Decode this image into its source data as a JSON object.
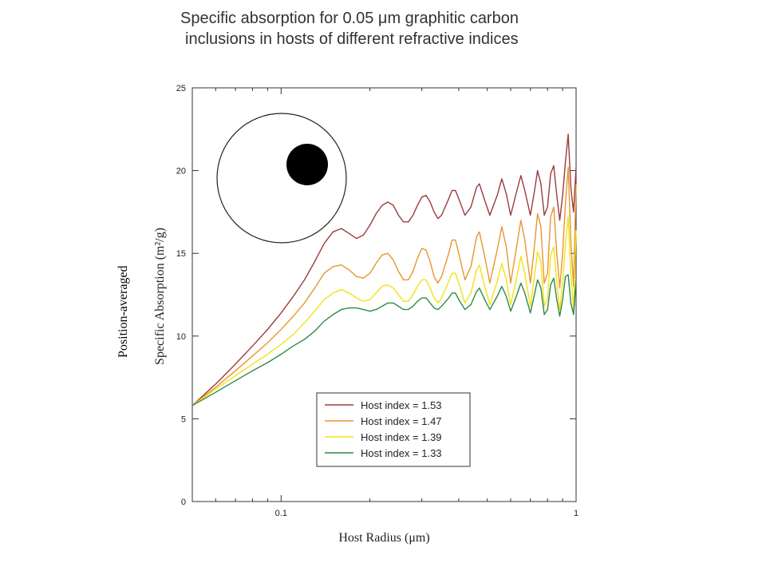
{
  "title_line1": "Specific absorption for 0.05 μm graphitic carbon",
  "title_line2": "inclusions in hosts of different refractive indices",
  "side_note": "Position-averaged",
  "chart_data": {
    "type": "line",
    "xlabel": "Host Radius (μm)",
    "ylabel": "Specific Absorption (m²/g)",
    "x_scale": "log",
    "xlim": [
      0.05,
      1
    ],
    "ylim": [
      0,
      25
    ],
    "x_ticks": [
      {
        "value": 0.1,
        "label": "0.1"
      },
      {
        "value": 1,
        "label": "1"
      }
    ],
    "y_ticks": [
      0,
      5,
      10,
      15,
      20,
      25
    ],
    "grid": false,
    "legend_position": "bottom-right",
    "inset_icon": "circle-with-off-center-black-dot",
    "series": [
      {
        "name": "Host index = 1.53",
        "color": "#9b3b3b",
        "points": [
          [
            0.05,
            5.8
          ],
          [
            0.06,
            7.1
          ],
          [
            0.07,
            8.3
          ],
          [
            0.08,
            9.4
          ],
          [
            0.09,
            10.4
          ],
          [
            0.1,
            11.4
          ],
          [
            0.11,
            12.4
          ],
          [
            0.12,
            13.4
          ],
          [
            0.13,
            14.5
          ],
          [
            0.14,
            15.6
          ],
          [
            0.15,
            16.3
          ],
          [
            0.16,
            16.5
          ],
          [
            0.17,
            16.2
          ],
          [
            0.18,
            15.9
          ],
          [
            0.19,
            16.1
          ],
          [
            0.2,
            16.7
          ],
          [
            0.21,
            17.4
          ],
          [
            0.22,
            17.9
          ],
          [
            0.23,
            18.1
          ],
          [
            0.24,
            17.9
          ],
          [
            0.25,
            17.3
          ],
          [
            0.26,
            16.9
          ],
          [
            0.27,
            16.9
          ],
          [
            0.28,
            17.3
          ],
          [
            0.29,
            17.9
          ],
          [
            0.3,
            18.4
          ],
          [
            0.31,
            18.5
          ],
          [
            0.32,
            18.1
          ],
          [
            0.33,
            17.5
          ],
          [
            0.34,
            17.1
          ],
          [
            0.35,
            17.3
          ],
          [
            0.37,
            18.3
          ],
          [
            0.38,
            18.8
          ],
          [
            0.39,
            18.8
          ],
          [
            0.4,
            18.3
          ],
          [
            0.42,
            17.3
          ],
          [
            0.44,
            17.8
          ],
          [
            0.46,
            19.0
          ],
          [
            0.47,
            19.2
          ],
          [
            0.49,
            18.2
          ],
          [
            0.51,
            17.3
          ],
          [
            0.54,
            18.5
          ],
          [
            0.56,
            19.5
          ],
          [
            0.58,
            18.6
          ],
          [
            0.6,
            17.3
          ],
          [
            0.63,
            18.8
          ],
          [
            0.65,
            19.7
          ],
          [
            0.67,
            18.8
          ],
          [
            0.7,
            17.3
          ],
          [
            0.72,
            18.6
          ],
          [
            0.74,
            20.0
          ],
          [
            0.76,
            19.2
          ],
          [
            0.78,
            17.3
          ],
          [
            0.8,
            17.8
          ],
          [
            0.82,
            19.8
          ],
          [
            0.84,
            20.3
          ],
          [
            0.86,
            18.5
          ],
          [
            0.88,
            17.0
          ],
          [
            0.9,
            18.5
          ],
          [
            0.92,
            20.5
          ],
          [
            0.94,
            22.2
          ],
          [
            0.96,
            19.0
          ],
          [
            0.98,
            17.5
          ],
          [
            1.0,
            20.2
          ]
        ]
      },
      {
        "name": "Host index = 1.47",
        "color": "#e8962e",
        "points": [
          [
            0.05,
            5.8
          ],
          [
            0.06,
            6.9
          ],
          [
            0.07,
            7.9
          ],
          [
            0.08,
            8.8
          ],
          [
            0.09,
            9.6
          ],
          [
            0.1,
            10.4
          ],
          [
            0.11,
            11.2
          ],
          [
            0.12,
            12.0
          ],
          [
            0.13,
            12.9
          ],
          [
            0.14,
            13.8
          ],
          [
            0.15,
            14.2
          ],
          [
            0.16,
            14.3
          ],
          [
            0.17,
            14.0
          ],
          [
            0.18,
            13.6
          ],
          [
            0.19,
            13.5
          ],
          [
            0.2,
            13.8
          ],
          [
            0.21,
            14.4
          ],
          [
            0.22,
            14.9
          ],
          [
            0.23,
            15.0
          ],
          [
            0.24,
            14.6
          ],
          [
            0.25,
            13.9
          ],
          [
            0.26,
            13.4
          ],
          [
            0.27,
            13.4
          ],
          [
            0.28,
            13.9
          ],
          [
            0.29,
            14.7
          ],
          [
            0.3,
            15.3
          ],
          [
            0.31,
            15.2
          ],
          [
            0.32,
            14.5
          ],
          [
            0.33,
            13.6
          ],
          [
            0.34,
            13.2
          ],
          [
            0.35,
            13.6
          ],
          [
            0.37,
            15.0
          ],
          [
            0.38,
            15.8
          ],
          [
            0.39,
            15.8
          ],
          [
            0.4,
            15.0
          ],
          [
            0.42,
            13.4
          ],
          [
            0.44,
            14.2
          ],
          [
            0.46,
            16.0
          ],
          [
            0.47,
            16.3
          ],
          [
            0.49,
            14.8
          ],
          [
            0.51,
            13.2
          ],
          [
            0.54,
            15.2
          ],
          [
            0.56,
            16.6
          ],
          [
            0.58,
            15.4
          ],
          [
            0.6,
            13.2
          ],
          [
            0.63,
            15.5
          ],
          [
            0.65,
            17.0
          ],
          [
            0.67,
            15.8
          ],
          [
            0.7,
            13.2
          ],
          [
            0.72,
            15.2
          ],
          [
            0.74,
            17.4
          ],
          [
            0.76,
            16.6
          ],
          [
            0.78,
            13.2
          ],
          [
            0.8,
            13.8
          ],
          [
            0.82,
            17.2
          ],
          [
            0.84,
            17.8
          ],
          [
            0.86,
            15.0
          ],
          [
            0.88,
            12.9
          ],
          [
            0.9,
            15.0
          ],
          [
            0.92,
            18.0
          ],
          [
            0.94,
            20.2
          ],
          [
            0.96,
            15.8
          ],
          [
            0.98,
            13.0
          ],
          [
            1.0,
            19.2
          ]
        ]
      },
      {
        "name": "Host index = 1.39",
        "color": "#f3e214",
        "points": [
          [
            0.05,
            5.8
          ],
          [
            0.06,
            6.8
          ],
          [
            0.07,
            7.6
          ],
          [
            0.08,
            8.3
          ],
          [
            0.09,
            8.9
          ],
          [
            0.1,
            9.5
          ],
          [
            0.11,
            10.1
          ],
          [
            0.12,
            10.8
          ],
          [
            0.13,
            11.5
          ],
          [
            0.14,
            12.2
          ],
          [
            0.15,
            12.6
          ],
          [
            0.16,
            12.8
          ],
          [
            0.17,
            12.6
          ],
          [
            0.18,
            12.3
          ],
          [
            0.19,
            12.1
          ],
          [
            0.2,
            12.2
          ],
          [
            0.21,
            12.6
          ],
          [
            0.22,
            13.0
          ],
          [
            0.23,
            13.1
          ],
          [
            0.24,
            12.9
          ],
          [
            0.25,
            12.5
          ],
          [
            0.26,
            12.1
          ],
          [
            0.27,
            12.1
          ],
          [
            0.28,
            12.5
          ],
          [
            0.29,
            13.0
          ],
          [
            0.3,
            13.4
          ],
          [
            0.31,
            13.4
          ],
          [
            0.32,
            12.9
          ],
          [
            0.33,
            12.3
          ],
          [
            0.34,
            12.0
          ],
          [
            0.35,
            12.3
          ],
          [
            0.37,
            13.3
          ],
          [
            0.38,
            13.8
          ],
          [
            0.39,
            13.8
          ],
          [
            0.4,
            13.2
          ],
          [
            0.42,
            12.0
          ],
          [
            0.44,
            12.6
          ],
          [
            0.46,
            14.0
          ],
          [
            0.47,
            14.3
          ],
          [
            0.49,
            13.0
          ],
          [
            0.51,
            11.9
          ],
          [
            0.54,
            13.3
          ],
          [
            0.56,
            14.4
          ],
          [
            0.58,
            13.4
          ],
          [
            0.6,
            11.9
          ],
          [
            0.63,
            13.6
          ],
          [
            0.65,
            14.8
          ],
          [
            0.67,
            13.8
          ],
          [
            0.7,
            11.8
          ],
          [
            0.72,
            13.4
          ],
          [
            0.74,
            15.1
          ],
          [
            0.76,
            14.5
          ],
          [
            0.78,
            11.8
          ],
          [
            0.8,
            12.3
          ],
          [
            0.82,
            14.9
          ],
          [
            0.84,
            15.4
          ],
          [
            0.86,
            13.2
          ],
          [
            0.88,
            11.6
          ],
          [
            0.9,
            13.2
          ],
          [
            0.92,
            15.6
          ],
          [
            0.94,
            17.2
          ],
          [
            0.96,
            13.8
          ],
          [
            0.98,
            11.6
          ],
          [
            1.0,
            16.4
          ]
        ]
      },
      {
        "name": "Host index = 1.33",
        "color": "#2f8a45",
        "points": [
          [
            0.05,
            5.8
          ],
          [
            0.06,
            6.6
          ],
          [
            0.07,
            7.3
          ],
          [
            0.08,
            7.9
          ],
          [
            0.09,
            8.4
          ],
          [
            0.1,
            8.9
          ],
          [
            0.11,
            9.4
          ],
          [
            0.12,
            9.8
          ],
          [
            0.13,
            10.3
          ],
          [
            0.14,
            10.9
          ],
          [
            0.15,
            11.3
          ],
          [
            0.16,
            11.6
          ],
          [
            0.17,
            11.7
          ],
          [
            0.18,
            11.7
          ],
          [
            0.19,
            11.6
          ],
          [
            0.2,
            11.5
          ],
          [
            0.21,
            11.6
          ],
          [
            0.22,
            11.8
          ],
          [
            0.23,
            12.0
          ],
          [
            0.24,
            12.0
          ],
          [
            0.25,
            11.8
          ],
          [
            0.26,
            11.6
          ],
          [
            0.27,
            11.6
          ],
          [
            0.28,
            11.8
          ],
          [
            0.29,
            12.1
          ],
          [
            0.3,
            12.3
          ],
          [
            0.31,
            12.3
          ],
          [
            0.32,
            12.0
          ],
          [
            0.33,
            11.7
          ],
          [
            0.34,
            11.6
          ],
          [
            0.35,
            11.8
          ],
          [
            0.37,
            12.3
          ],
          [
            0.38,
            12.6
          ],
          [
            0.39,
            12.6
          ],
          [
            0.4,
            12.2
          ],
          [
            0.42,
            11.6
          ],
          [
            0.44,
            11.9
          ],
          [
            0.46,
            12.7
          ],
          [
            0.47,
            12.9
          ],
          [
            0.49,
            12.2
          ],
          [
            0.51,
            11.6
          ],
          [
            0.54,
            12.4
          ],
          [
            0.56,
            13.0
          ],
          [
            0.58,
            12.4
          ],
          [
            0.6,
            11.5
          ],
          [
            0.63,
            12.5
          ],
          [
            0.65,
            13.2
          ],
          [
            0.67,
            12.6
          ],
          [
            0.7,
            11.4
          ],
          [
            0.72,
            12.4
          ],
          [
            0.74,
            13.4
          ],
          [
            0.76,
            12.9
          ],
          [
            0.78,
            11.3
          ],
          [
            0.8,
            11.6
          ],
          [
            0.82,
            13.1
          ],
          [
            0.84,
            13.5
          ],
          [
            0.86,
            12.2
          ],
          [
            0.88,
            11.2
          ],
          [
            0.9,
            12.2
          ],
          [
            0.92,
            13.6
          ],
          [
            0.94,
            13.7
          ],
          [
            0.96,
            12.0
          ],
          [
            0.98,
            11.3
          ],
          [
            1.0,
            13.4
          ]
        ]
      }
    ]
  }
}
